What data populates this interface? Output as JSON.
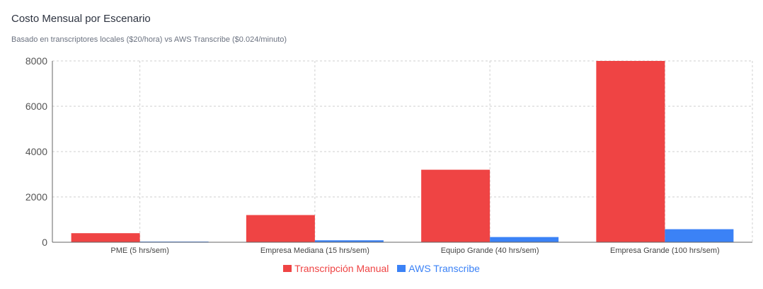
{
  "chart_data": {
    "type": "bar",
    "title": "Costo Mensual por Escenario",
    "subtitle": "Basado en transcriptores locales ($20/hora) vs AWS Transcribe ($0.024/minuto)",
    "categories": [
      "PME (5 hrs/sem)",
      "Empresa Mediana (15 hrs/sem)",
      "Equipo Grande (40 hrs/sem)",
      "Empresa Grande (100 hrs/sem)"
    ],
    "series": [
      {
        "name": "Transcripción Manual",
        "color": "#ef4444",
        "values": [
          400,
          1200,
          3200,
          8000
        ]
      },
      {
        "name": "AWS Transcribe",
        "color": "#3b82f6",
        "values": [
          29,
          86,
          230,
          576
        ]
      }
    ],
    "y_ticks": [
      0,
      2000,
      4000,
      6000,
      8000
    ],
    "ylim": [
      0,
      8000
    ],
    "grid": true,
    "legend_position": "bottom-center"
  }
}
